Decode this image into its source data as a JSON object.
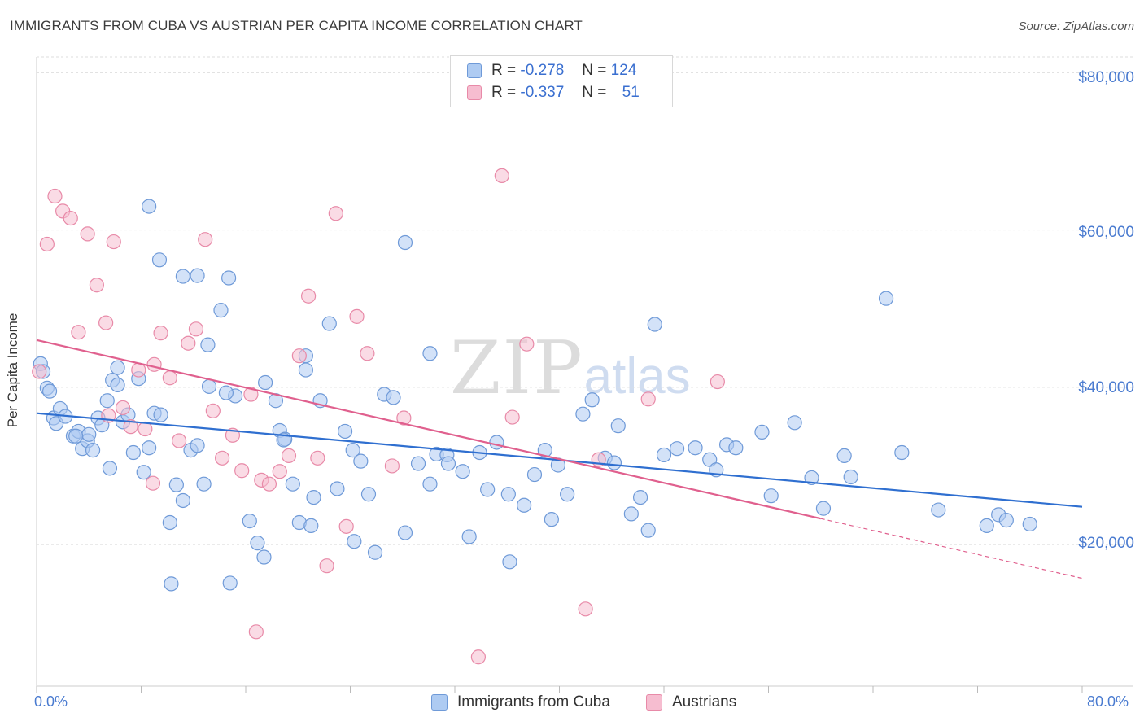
{
  "title": "IMMIGRANTS FROM CUBA VS AUSTRIAN PER CAPITA INCOME CORRELATION CHART",
  "source": "Source: ZipAtlas.com",
  "watermark": {
    "zip": "ZIP",
    "atlas": "atlas"
  },
  "legend": {
    "r_label": "R =",
    "n_label": "N =",
    "rows": [
      {
        "r": "-0.278",
        "n": "124"
      },
      {
        "r": "-0.337",
        "n": "51"
      }
    ]
  },
  "colors": {
    "blue_fill": "#aecbf2",
    "blue_stroke": "#6f9ad8",
    "blue_line": "#2f6fd0",
    "pink_fill": "#f6bdd0",
    "pink_stroke": "#e88aa8",
    "pink_line": "#e0608e",
    "tick_text": "#4a7bd0",
    "grid": "#dedede"
  },
  "chart_data": {
    "type": "scatter",
    "xlabel": "",
    "ylabel": "Per Capita Income",
    "xlim": [
      0,
      80
    ],
    "ylim": [
      2000,
      82000
    ],
    "x_tick_labels": [
      "0.0%",
      "80.0%"
    ],
    "y_ticks": [
      20000,
      40000,
      60000,
      80000
    ],
    "y_tick_labels": [
      "$20,000",
      "$40,000",
      "$60,000",
      "$80,000"
    ],
    "grid": "horizontal dashed",
    "legend_position": "top-center",
    "series": [
      {
        "name": "Immigrants from Cuba",
        "color": "blue",
        "trendline": {
          "x": [
            0,
            80
          ],
          "y": [
            36700,
            24800
          ]
        },
        "points": [
          [
            0.3,
            43000
          ],
          [
            0.5,
            42000
          ],
          [
            0.8,
            39900
          ],
          [
            1.0,
            39500
          ],
          [
            1.3,
            36100
          ],
          [
            1.5,
            35400
          ],
          [
            1.8,
            37300
          ],
          [
            2.2,
            36300
          ],
          [
            2.8,
            33800
          ],
          [
            3.2,
            34400
          ],
          [
            3.5,
            32200
          ],
          [
            3.9,
            33200
          ],
          [
            4.3,
            32000
          ],
          [
            4.7,
            36100
          ],
          [
            5.0,
            35200
          ],
          [
            5.4,
            38300
          ],
          [
            5.8,
            40900
          ],
          [
            6.2,
            42500
          ],
          [
            6.6,
            35600
          ],
          [
            7.0,
            36500
          ],
          [
            7.4,
            31700
          ],
          [
            7.8,
            41100
          ],
          [
            8.2,
            29200
          ],
          [
            8.6,
            32300
          ],
          [
            9.0,
            36700
          ],
          [
            9.5,
            36500
          ],
          [
            10.2,
            22800
          ],
          [
            10.7,
            27600
          ],
          [
            11.2,
            25600
          ],
          [
            11.8,
            32000
          ],
          [
            12.3,
            32600
          ],
          [
            12.8,
            27700
          ],
          [
            13.2,
            40100
          ],
          [
            14.1,
            49800
          ],
          [
            14.7,
            53900
          ],
          [
            15.2,
            38900
          ],
          [
            16.3,
            23000
          ],
          [
            16.9,
            20200
          ],
          [
            17.5,
            40600
          ],
          [
            18.3,
            38300
          ],
          [
            18.6,
            34500
          ],
          [
            19.0,
            33400
          ],
          [
            19.6,
            27700
          ],
          [
            20.1,
            22800
          ],
          [
            20.6,
            44000
          ],
          [
            21.2,
            26000
          ],
          [
            21.7,
            38300
          ],
          [
            22.4,
            48100
          ],
          [
            23.0,
            27100
          ],
          [
            23.6,
            34400
          ],
          [
            24.2,
            32000
          ],
          [
            24.8,
            30600
          ],
          [
            25.4,
            26400
          ],
          [
            25.9,
            19000
          ],
          [
            26.6,
            39100
          ],
          [
            27.3,
            38700
          ],
          [
            28.2,
            21500
          ],
          [
            29.2,
            30300
          ],
          [
            30.1,
            27700
          ],
          [
            30.6,
            31500
          ],
          [
            31.4,
            31400
          ],
          [
            32.6,
            29300
          ],
          [
            33.1,
            21000
          ],
          [
            33.9,
            31700
          ],
          [
            34.5,
            27000
          ],
          [
            35.2,
            33000
          ],
          [
            36.2,
            17800
          ],
          [
            37.3,
            25000
          ],
          [
            38.1,
            28900
          ],
          [
            38.9,
            32000
          ],
          [
            39.4,
            23200
          ],
          [
            39.9,
            30100
          ],
          [
            40.6,
            26400
          ],
          [
            41.8,
            36600
          ],
          [
            42.5,
            38400
          ],
          [
            43.5,
            31000
          ],
          [
            44.5,
            35100
          ],
          [
            45.5,
            23900
          ],
          [
            46.2,
            26000
          ],
          [
            46.8,
            21800
          ],
          [
            47.3,
            48000
          ],
          [
            48.0,
            31400
          ],
          [
            49.0,
            32200
          ],
          [
            50.4,
            32300
          ],
          [
            51.5,
            30800
          ],
          [
            52.0,
            29500
          ],
          [
            52.8,
            32700
          ],
          [
            53.5,
            32300
          ],
          [
            55.5,
            34300
          ],
          [
            56.2,
            26200
          ],
          [
            58.0,
            35500
          ],
          [
            59.3,
            28500
          ],
          [
            60.2,
            24600
          ],
          [
            61.8,
            31300
          ],
          [
            65.0,
            51300
          ],
          [
            66.2,
            31700
          ],
          [
            69.0,
            24400
          ],
          [
            72.7,
            22400
          ],
          [
            73.6,
            23800
          ],
          [
            74.2,
            23100
          ],
          [
            76.0,
            22600
          ],
          [
            10.3,
            15000
          ],
          [
            14.8,
            15100
          ],
          [
            6.2,
            40300
          ],
          [
            8.6,
            63000
          ],
          [
            9.4,
            56200
          ],
          [
            11.2,
            54100
          ],
          [
            12.3,
            54200
          ],
          [
            13.1,
            45400
          ],
          [
            14.5,
            39300
          ],
          [
            18.9,
            33300
          ],
          [
            17.4,
            18400
          ],
          [
            20.6,
            42200
          ],
          [
            28.2,
            58400
          ],
          [
            30.1,
            44300
          ],
          [
            5.6,
            29700
          ],
          [
            4.0,
            34000
          ],
          [
            3.0,
            33800
          ],
          [
            24.3,
            20400
          ],
          [
            36.1,
            26400
          ],
          [
            31.5,
            30300
          ],
          [
            44.2,
            30400
          ],
          [
            62.3,
            28600
          ],
          [
            21.0,
            22400
          ]
        ]
      },
      {
        "name": "Austrians",
        "color": "pink",
        "trendline": {
          "x": [
            0,
            60
          ],
          "y": [
            46000,
            23300
          ]
        },
        "trendline_dashed": {
          "x": [
            60,
            80
          ],
          "y": [
            23300,
            15700
          ]
        },
        "points": [
          [
            0.2,
            42000
          ],
          [
            0.8,
            58200
          ],
          [
            1.4,
            64300
          ],
          [
            2.0,
            62400
          ],
          [
            2.6,
            61500
          ],
          [
            3.2,
            47000
          ],
          [
            3.9,
            59500
          ],
          [
            4.6,
            53000
          ],
          [
            5.3,
            48200
          ],
          [
            5.9,
            58500
          ],
          [
            6.6,
            37400
          ],
          [
            7.2,
            35000
          ],
          [
            7.8,
            42200
          ],
          [
            8.3,
            34700
          ],
          [
            8.9,
            27800
          ],
          [
            9.5,
            46900
          ],
          [
            10.2,
            41200
          ],
          [
            10.9,
            33200
          ],
          [
            11.6,
            45600
          ],
          [
            12.2,
            47400
          ],
          [
            12.9,
            58800
          ],
          [
            13.5,
            37000
          ],
          [
            14.2,
            31000
          ],
          [
            15.0,
            33900
          ],
          [
            15.7,
            29400
          ],
          [
            16.4,
            39100
          ],
          [
            17.2,
            28200
          ],
          [
            17.8,
            27700
          ],
          [
            18.6,
            29300
          ],
          [
            19.3,
            31300
          ],
          [
            20.1,
            44000
          ],
          [
            20.8,
            51600
          ],
          [
            21.5,
            31000
          ],
          [
            22.2,
            17300
          ],
          [
            22.9,
            62100
          ],
          [
            23.7,
            22300
          ],
          [
            24.5,
            49000
          ],
          [
            25.3,
            44300
          ],
          [
            27.2,
            30000
          ],
          [
            28.1,
            36100
          ],
          [
            33.8,
            5700
          ],
          [
            35.6,
            66900
          ],
          [
            36.4,
            36200
          ],
          [
            37.5,
            45500
          ],
          [
            42.0,
            11800
          ],
          [
            43.0,
            30800
          ],
          [
            46.8,
            38500
          ],
          [
            52.1,
            40700
          ],
          [
            16.8,
            8900
          ],
          [
            5.5,
            36400
          ],
          [
            9.0,
            42900
          ]
        ]
      }
    ]
  }
}
